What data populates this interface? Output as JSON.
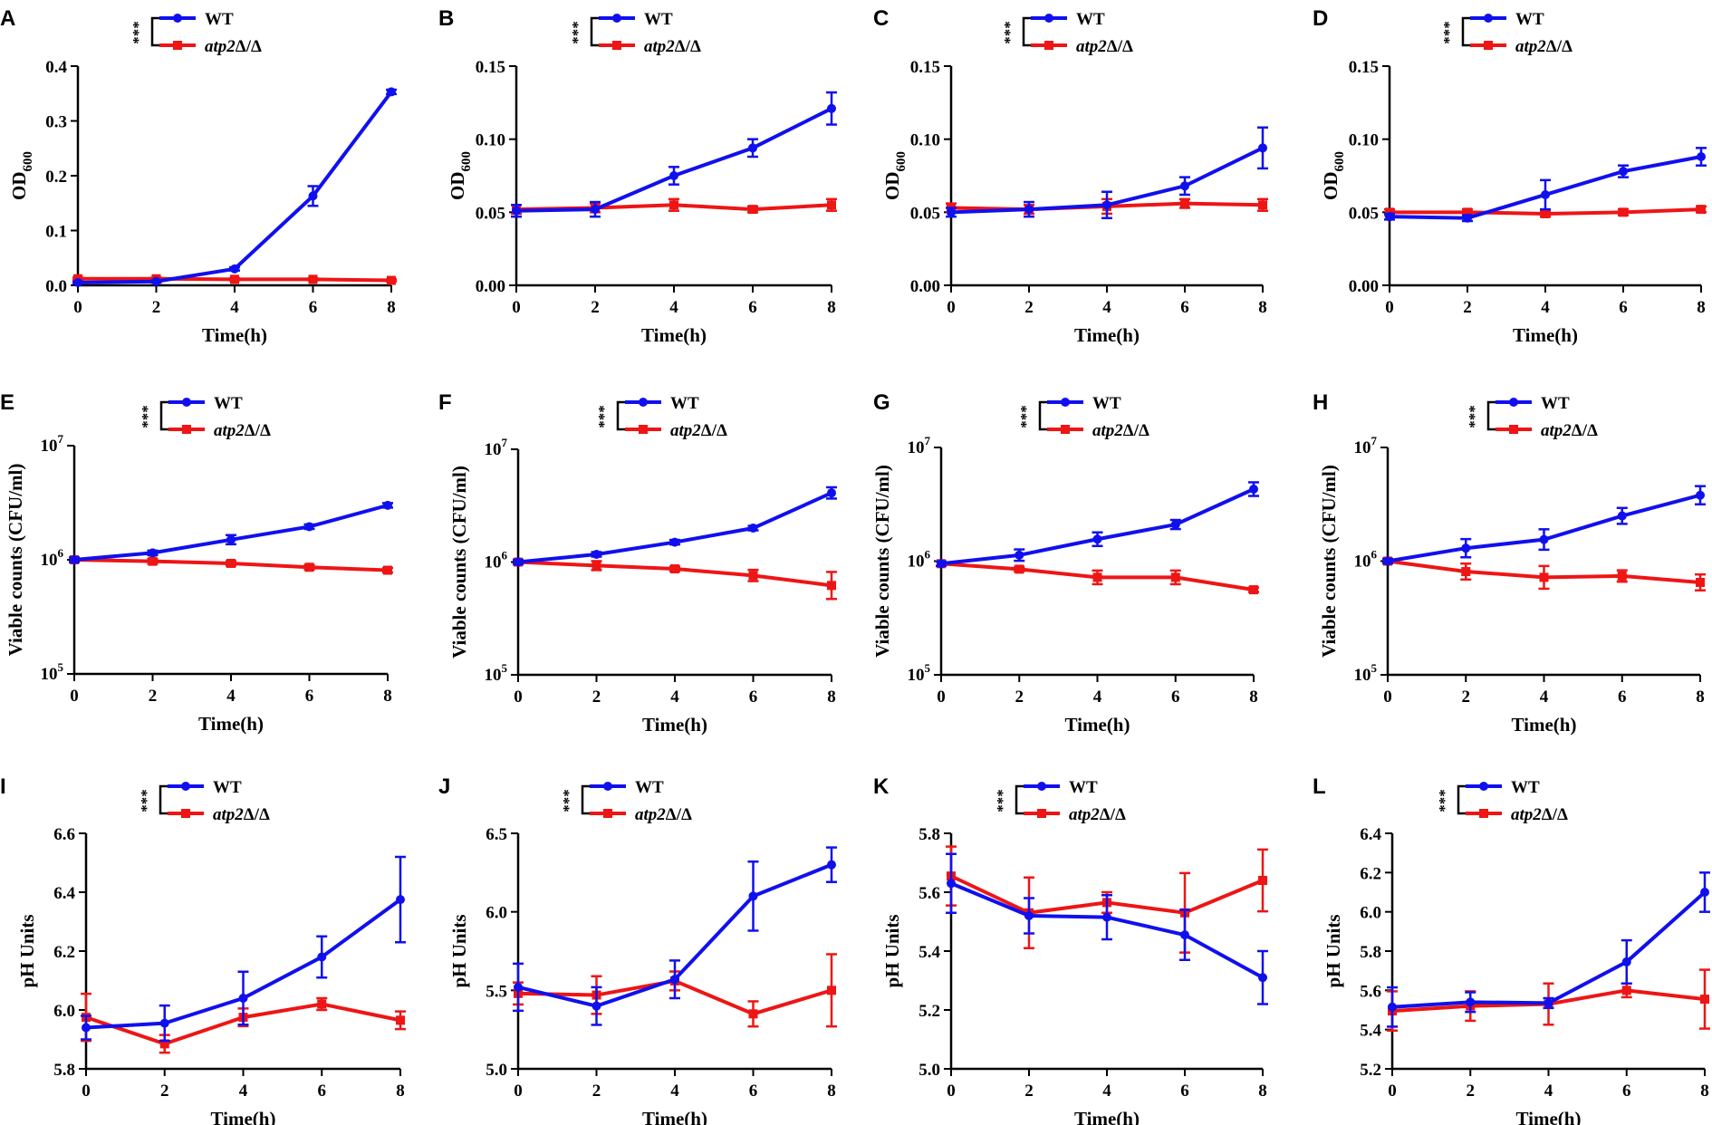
{
  "colors": {
    "wt": "#1010ee",
    "mutant": "#ee1515",
    "axis": "#000000"
  },
  "chart_data": [
    {
      "panel": "A",
      "type": "line",
      "scale": "linear",
      "ylabel_main": "OD",
      "ylabel_sub": "600",
      "xlabel": "Time(h)",
      "x": [
        0,
        2,
        4,
        6,
        8
      ],
      "xticks": [
        "0",
        "2",
        "4",
        "6",
        "8"
      ],
      "ylim": [
        0,
        0.4
      ],
      "yticks": [
        0,
        0.1,
        0.2,
        0.3,
        0.4
      ],
      "ytick_labels": [
        "0.0",
        "0.1",
        "0.2",
        "0.3",
        "0.4"
      ],
      "legend": {
        "stars": "***",
        "wt": "WT",
        "mut_gene": "atp2",
        "mut_suffix": "Δ/Δ"
      },
      "series": [
        {
          "name": "WT",
          "values": [
            0.005,
            0.007,
            0.03,
            0.163,
            0.353
          ],
          "errors": [
            0.002,
            0.002,
            0.003,
            0.018,
            0.004
          ]
        },
        {
          "name": "atp2Δ/Δ",
          "values": [
            0.012,
            0.012,
            0.011,
            0.011,
            0.009
          ],
          "errors": [
            0.002,
            0.002,
            0.002,
            0.002,
            0.002
          ]
        }
      ]
    },
    {
      "panel": "B",
      "type": "line",
      "scale": "linear",
      "ylabel_main": "OD",
      "ylabel_sub": "600",
      "xlabel": "Time(h)",
      "x": [
        0,
        2,
        4,
        6,
        8
      ],
      "xticks": [
        "0",
        "2",
        "4",
        "6",
        "8"
      ],
      "ylim": [
        0,
        0.15
      ],
      "yticks": [
        0,
        0.05,
        0.1,
        0.15
      ],
      "ytick_labels": [
        "0.00",
        "0.05",
        "0.10",
        "0.15"
      ],
      "legend": {
        "stars": "***",
        "wt": "WT",
        "mut_gene": "atp2",
        "mut_suffix": "Δ/Δ"
      },
      "series": [
        {
          "name": "WT",
          "values": [
            0.051,
            0.052,
            0.075,
            0.094,
            0.121
          ],
          "errors": [
            0.004,
            0.005,
            0.006,
            0.006,
            0.011
          ]
        },
        {
          "name": "atp2Δ/Δ",
          "values": [
            0.052,
            0.053,
            0.055,
            0.052,
            0.055
          ],
          "errors": [
            0.003,
            0.003,
            0.004,
            0.002,
            0.004
          ]
        }
      ]
    },
    {
      "panel": "C",
      "type": "line",
      "scale": "linear",
      "ylabel_main": "OD",
      "ylabel_sub": "600",
      "xlabel": "Time(h)",
      "x": [
        0,
        2,
        4,
        6,
        8
      ],
      "xticks": [
        "0",
        "2",
        "4",
        "6",
        "8"
      ],
      "ylim": [
        0,
        0.15
      ],
      "yticks": [
        0,
        0.05,
        0.1,
        0.15
      ],
      "ytick_labels": [
        "0.00",
        "0.05",
        "0.10",
        "0.15"
      ],
      "legend": {
        "stars": "***",
        "wt": "WT",
        "mut_gene": "atp2",
        "mut_suffix": "Δ/Δ"
      },
      "series": [
        {
          "name": "WT",
          "values": [
            0.05,
            0.052,
            0.055,
            0.068,
            0.094
          ],
          "errors": [
            0.003,
            0.005,
            0.009,
            0.006,
            0.014
          ]
        },
        {
          "name": "atp2Δ/Δ",
          "values": [
            0.053,
            0.052,
            0.054,
            0.056,
            0.055
          ],
          "errors": [
            0.003,
            0.003,
            0.005,
            0.003,
            0.004
          ]
        }
      ]
    },
    {
      "panel": "D",
      "type": "line",
      "scale": "linear",
      "ylabel_main": "OD",
      "ylabel_sub": "600",
      "xlabel": "Time(h)",
      "x": [
        0,
        2,
        4,
        6,
        8
      ],
      "xticks": [
        "0",
        "2",
        "4",
        "6",
        "8"
      ],
      "ylim": [
        0,
        0.15
      ],
      "yticks": [
        0,
        0.05,
        0.1,
        0.15
      ],
      "ytick_labels": [
        "0.00",
        "0.05",
        "0.10",
        "0.15"
      ],
      "legend": {
        "stars": "***",
        "wt": "WT",
        "mut_gene": "atp2",
        "mut_suffix": "Δ/Δ"
      },
      "series": [
        {
          "name": "WT",
          "values": [
            0.047,
            0.046,
            0.062,
            0.078,
            0.088
          ],
          "errors": [
            0.002,
            0.002,
            0.01,
            0.004,
            0.006
          ]
        },
        {
          "name": "atp2Δ/Δ",
          "values": [
            0.05,
            0.05,
            0.049,
            0.05,
            0.052
          ],
          "errors": [
            0.002,
            0.002,
            0.002,
            0.002,
            0.002
          ]
        }
      ]
    },
    {
      "panel": "E",
      "type": "line",
      "scale": "log10",
      "ylabel_main": "Viable counts (CFU/ml)",
      "ylabel_sub": "",
      "xlabel": "Time(h)",
      "x": [
        0,
        2,
        4,
        6,
        8
      ],
      "xticks": [
        "0",
        "2",
        "4",
        "6",
        "8"
      ],
      "ylim": [
        100000,
        10000000
      ],
      "ytick_exponents": [
        5,
        6,
        7
      ],
      "legend": {
        "stars": "***",
        "wt": "WT",
        "mut_gene": "atp2",
        "mut_suffix": "Δ/Δ"
      },
      "series": [
        {
          "name": "WT",
          "values": [
            1000000,
            1150000,
            1500000,
            1950000,
            3000000
          ],
          "errors_log": [
            0.02,
            0.02,
            0.04,
            0.02,
            0.02
          ]
        },
        {
          "name": "atp2Δ/Δ",
          "values": [
            1000000,
            970000,
            930000,
            860000,
            810000
          ],
          "errors_log": [
            0.02,
            0.02,
            0.02,
            0.02,
            0.02
          ]
        }
      ]
    },
    {
      "panel": "F",
      "type": "line",
      "scale": "log10",
      "ylabel_main": "Viable counts (CFU/ml)",
      "ylabel_sub": "",
      "xlabel": "Time(h)",
      "x": [
        0,
        2,
        4,
        6,
        8
      ],
      "xticks": [
        "0",
        "2",
        "4",
        "6",
        "8"
      ],
      "ylim": [
        100000,
        10000000
      ],
      "ytick_exponents": [
        5,
        6,
        7
      ],
      "legend": {
        "stars": "***",
        "wt": "WT",
        "mut_gene": "atp2",
        "mut_suffix": "Δ/Δ"
      },
      "series": [
        {
          "name": "WT",
          "values": [
            1000000,
            1170000,
            1500000,
            2000000,
            4100000
          ],
          "errors_log": [
            0.02,
            0.02,
            0.02,
            0.02,
            0.05
          ]
        },
        {
          "name": "atp2Δ/Δ",
          "values": [
            1000000,
            930000,
            870000,
            760000,
            620000
          ],
          "errors_log": [
            0.02,
            0.04,
            0.02,
            0.05,
            0.12
          ]
        }
      ]
    },
    {
      "panel": "G",
      "type": "line",
      "scale": "log10",
      "ylabel_main": "Viable counts (CFU/ml)",
      "ylabel_sub": "",
      "xlabel": "Time(h)",
      "x": [
        0,
        2,
        4,
        6,
        8
      ],
      "xticks": [
        "0",
        "2",
        "4",
        "6",
        "8"
      ],
      "ylim": [
        100000,
        10000000
      ],
      "ytick_exponents": [
        5,
        6,
        7
      ],
      "legend": {
        "stars": "***",
        "wt": "WT",
        "mut_gene": "atp2",
        "mut_suffix": "Δ/Δ"
      },
      "series": [
        {
          "name": "WT",
          "values": [
            950000,
            1130000,
            1560000,
            2100000,
            4300000
          ],
          "errors_log": [
            0.02,
            0.05,
            0.06,
            0.04,
            0.06
          ]
        },
        {
          "name": "atp2Δ/Δ",
          "values": [
            950000,
            850000,
            720000,
            720000,
            560000
          ],
          "errors_log": [
            0.02,
            0.02,
            0.06,
            0.06,
            0.02
          ]
        }
      ]
    },
    {
      "panel": "H",
      "type": "line",
      "scale": "log10",
      "ylabel_main": "Viable counts (CFU/ml)",
      "ylabel_sub": "",
      "xlabel": "Time(h)",
      "x": [
        0,
        2,
        4,
        6,
        8
      ],
      "xticks": [
        "0",
        "2",
        "4",
        "6",
        "8"
      ],
      "ylim": [
        100000,
        10000000
      ],
      "ytick_exponents": [
        5,
        6,
        7
      ],
      "legend": {
        "stars": "***",
        "wt": "WT",
        "mut_gene": "atp2",
        "mut_suffix": "Δ/Δ"
      },
      "series": [
        {
          "name": "WT",
          "values": [
            1000000,
            1300000,
            1550000,
            2500000,
            3800000
          ],
          "errors_log": [
            0.02,
            0.08,
            0.09,
            0.07,
            0.08
          ]
        },
        {
          "name": "atp2Δ/Δ",
          "values": [
            1000000,
            810000,
            720000,
            740000,
            650000
          ],
          "errors_log": [
            0.02,
            0.07,
            0.1,
            0.05,
            0.07
          ]
        }
      ]
    },
    {
      "panel": "I",
      "type": "line",
      "scale": "linear",
      "ylabel_main": "pH Units",
      "ylabel_sub": "",
      "xlabel": "Time(h)",
      "x": [
        0,
        2,
        4,
        6,
        8
      ],
      "xticks": [
        "0",
        "2",
        "4",
        "6",
        "8"
      ],
      "ylim": [
        5.8,
        6.6
      ],
      "yticks": [
        5.8,
        6.0,
        6.2,
        6.4,
        6.6
      ],
      "ytick_labels": [
        "5.8",
        "6.0",
        "6.2",
        "6.4",
        "6.6"
      ],
      "legend": {
        "stars": "***",
        "wt": "WT",
        "mut_gene": "atp2",
        "mut_suffix": "Δ/Δ"
      },
      "series": [
        {
          "name": "WT",
          "values": [
            5.94,
            5.955,
            6.04,
            6.18,
            6.375
          ],
          "errors": [
            0.04,
            0.06,
            0.09,
            0.07,
            0.145
          ]
        },
        {
          "name": "atp2Δ/Δ",
          "values": [
            5.975,
            5.885,
            5.975,
            6.02,
            5.965
          ],
          "errors": [
            0.08,
            0.03,
            0.03,
            0.02,
            0.03
          ]
        }
      ]
    },
    {
      "panel": "J",
      "type": "line",
      "scale": "linear",
      "ylabel_main": "pH Units",
      "ylabel_sub": "",
      "xlabel": "Time(h)",
      "x": [
        0,
        2,
        4,
        6,
        8
      ],
      "xticks": [
        "0",
        "2",
        "4",
        "6",
        "8"
      ],
      "ylim": [
        5.0,
        6.5
      ],
      "yticks": [
        5.0,
        5.5,
        6.0,
        6.5
      ],
      "ytick_labels": [
        "5.0",
        "5.5",
        "6.0",
        "6.5"
      ],
      "legend": {
        "stars": "***",
        "wt": "WT",
        "mut_gene": "atp2",
        "mut_suffix": "Δ/Δ"
      },
      "series": [
        {
          "name": "WT",
          "values": [
            5.52,
            5.4,
            5.57,
            6.1,
            6.3
          ],
          "errors": [
            0.15,
            0.12,
            0.12,
            0.22,
            0.11
          ]
        },
        {
          "name": "atp2Δ/Δ",
          "values": [
            5.48,
            5.47,
            5.56,
            5.35,
            5.5
          ],
          "errors": [
            0.07,
            0.12,
            0.06,
            0.08,
            0.23
          ]
        }
      ]
    },
    {
      "panel": "K",
      "type": "line",
      "scale": "linear",
      "ylabel_main": "pH Units",
      "ylabel_sub": "",
      "xlabel": "Time(h)",
      "x": [
        0,
        2,
        4,
        6,
        8
      ],
      "xticks": [
        "0",
        "2",
        "4",
        "6",
        "8"
      ],
      "ylim": [
        5.0,
        5.8
      ],
      "yticks": [
        5.0,
        5.2,
        5.4,
        5.6,
        5.8
      ],
      "ytick_labels": [
        "5.0",
        "5.2",
        "5.4",
        "5.6",
        "5.8"
      ],
      "legend": {
        "stars": "***",
        "wt": "WT",
        "mut_gene": "atp2",
        "mut_suffix": "Δ/Δ"
      },
      "series": [
        {
          "name": "WT",
          "values": [
            5.63,
            5.52,
            5.515,
            5.455,
            5.31
          ],
          "errors": [
            0.1,
            0.06,
            0.075,
            0.085,
            0.09
          ]
        },
        {
          "name": "atp2Δ/Δ",
          "values": [
            5.655,
            5.53,
            5.565,
            5.53,
            5.64
          ],
          "errors": [
            0.1,
            0.12,
            0.035,
            0.135,
            0.105
          ]
        }
      ]
    },
    {
      "panel": "L",
      "type": "line",
      "scale": "linear",
      "ylabel_main": "pH Units",
      "ylabel_sub": "",
      "xlabel": "Time(h)",
      "x": [
        0,
        2,
        4,
        6,
        8
      ],
      "xticks": [
        "0",
        "2",
        "4",
        "6",
        "8"
      ],
      "ylim": [
        5.2,
        6.4
      ],
      "yticks": [
        5.2,
        5.4,
        5.6,
        5.8,
        6.0,
        6.2,
        6.4
      ],
      "ytick_labels": [
        "5.2",
        "5.4",
        "5.6",
        "5.8",
        "6.0",
        "6.2",
        "6.4"
      ],
      "legend": {
        "stars": "***",
        "wt": "WT",
        "mut_gene": "atp2",
        "mut_suffix": "Δ/Δ"
      },
      "series": [
        {
          "name": "WT",
          "values": [
            5.515,
            5.54,
            5.535,
            5.745,
            6.1
          ],
          "errors": [
            0.1,
            0.05,
            0.025,
            0.11,
            0.1
          ]
        },
        {
          "name": "atp2Δ/Δ",
          "values": [
            5.495,
            5.52,
            5.53,
            5.6,
            5.555
          ],
          "errors": [
            0.1,
            0.075,
            0.105,
            0.035,
            0.15
          ]
        }
      ]
    }
  ]
}
